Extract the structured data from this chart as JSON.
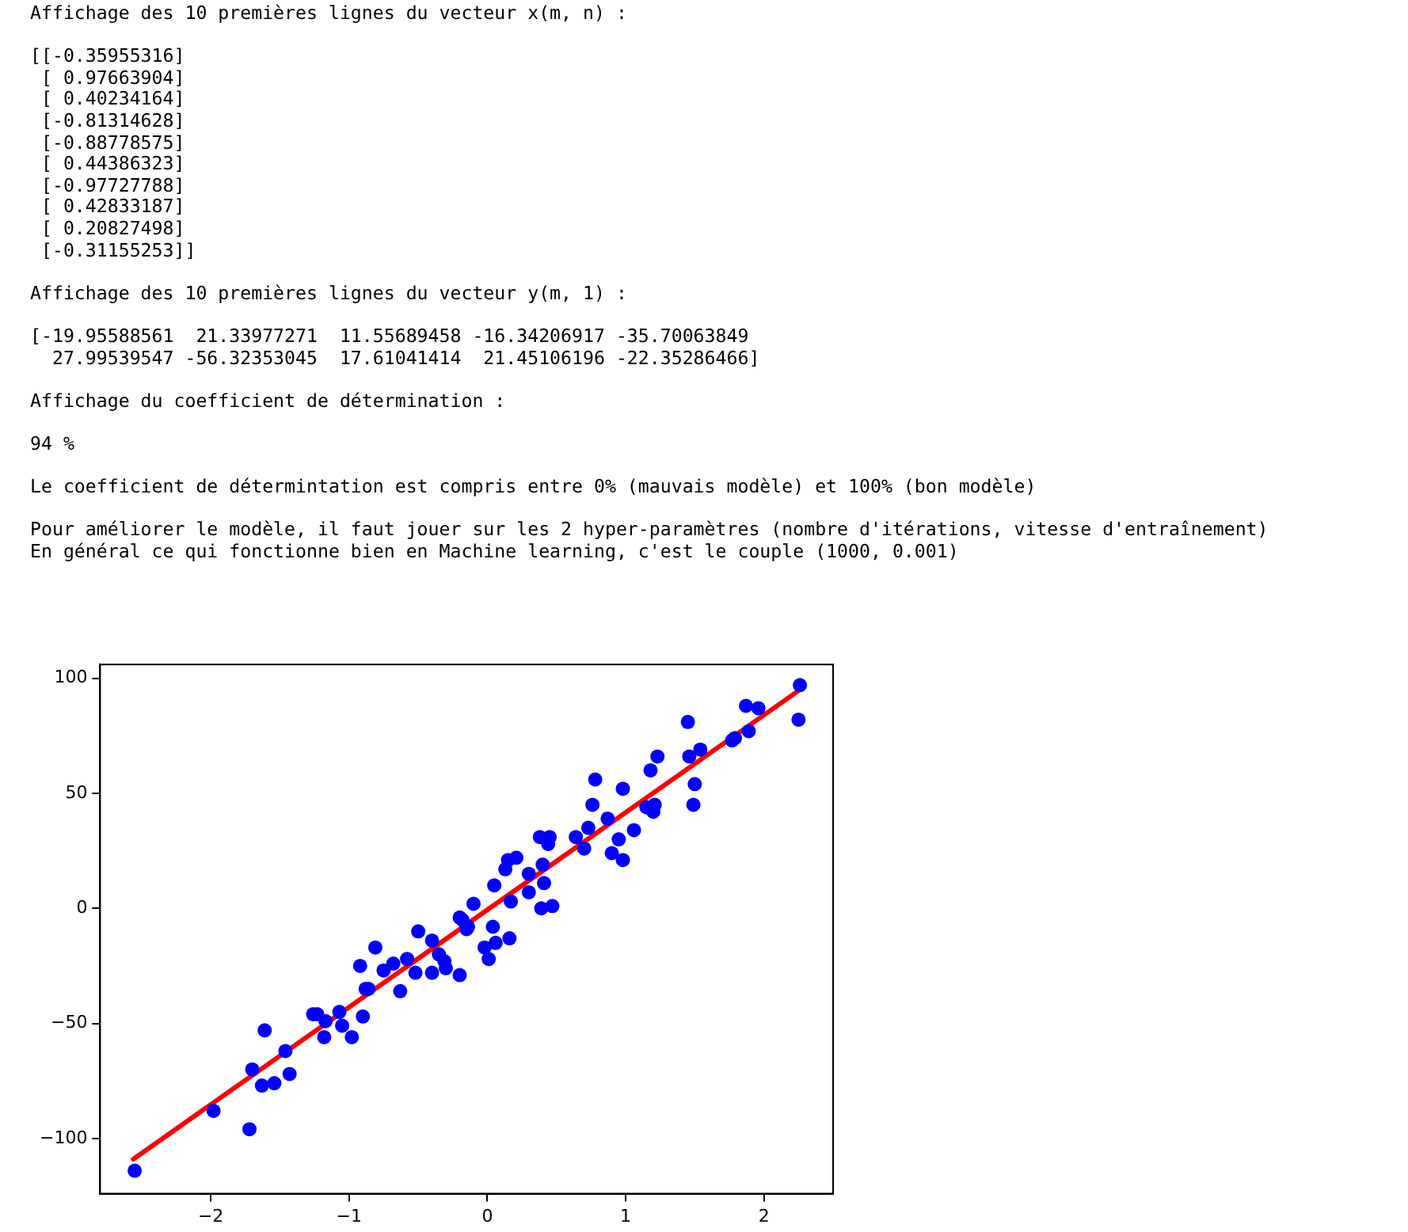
{
  "chart_data": {
    "type": "scatter",
    "annotations": [
      "Affichage des 10 premières lignes du vecteur x(m, n) :",
      "[[-0.35955316]\n [ 0.97663904]\n [ 0.40234164]\n [-0.81314628]\n [-0.88778575]\n [ 0.44386323]\n [-0.97727788]\n [ 0.42833187]\n [ 0.20827498]\n [-0.31155253]]",
      "Affichage des 10 premières lignes du vecteur y(m, 1) :",
      "[-19.95588561  21.33977271  11.55689458 -16.34206917 -35.70063849\n  27.99539547 -56.32353045  17.61041414  21.45106196 -22.35286466]",
      "Affichage du coefficient de détermination :",
      "94 %",
      "Le coefficient de détermintation est compris entre 0% (mauvais modèle) et 100% (bon modèle)",
      "Pour améliorer le modèle, il faut jouer sur les 2 hyper-paramètres (nombre d'itérations, vitesse d'entraînement)\nEn général ce qui fonctionne bien en Machine learning, c'est le couple (1000, 0.001)"
    ],
    "xlim": [
      -2.8,
      2.5
    ],
    "xticks": [
      -2,
      -1,
      0,
      1,
      2
    ],
    "ylim": [
      -124,
      106
    ],
    "yticks": [
      -100,
      -50,
      0,
      50,
      100
    ],
    "grid": false,
    "legend": false,
    "marker": "circle",
    "series": [
      {
        "color": "#0000ff",
        "x": [
          -2.55,
          -1.98,
          -1.72,
          -1.7,
          -1.61,
          -1.63,
          -1.54,
          -1.46,
          -1.43,
          -1.26,
          -1.23,
          -1.18,
          -1.17,
          -1.07,
          -1.05,
          -0.98,
          -0.9,
          -0.92,
          -0.88,
          -0.86,
          -0.81,
          -0.75,
          -0.68,
          -0.63,
          -0.58,
          -0.5,
          -0.52,
          -0.4,
          -0.4,
          -0.35,
          -0.31,
          -0.3,
          -0.2,
          -0.18,
          -0.15,
          -0.14,
          0.04,
          -0.02,
          0.06,
          0.16,
          0.01,
          -0.2,
          -0.1,
          0.05,
          0.15,
          0.21,
          0.13,
          0.17,
          0.3,
          0.3,
          0.4,
          0.41,
          0.38,
          0.45,
          0.44,
          0.39,
          0.47,
          0.64,
          0.7,
          0.73,
          0.76,
          0.78,
          0.87,
          0.9,
          0.98,
          0.95,
          0.98,
          1.06,
          1.15,
          1.21,
          1.2,
          1.18,
          1.23,
          1.45,
          1.46,
          1.5,
          1.49,
          1.54,
          1.77,
          1.79,
          1.87,
          1.96,
          1.89,
          2.26,
          2.25
        ],
        "values": [
          -114,
          -88,
          -96,
          -70,
          -53,
          -77,
          -76,
          -62,
          -72,
          -46,
          -46,
          -56,
          -49,
          -45,
          -51,
          -56,
          -47,
          -25,
          -35,
          -35,
          -17,
          -27,
          -24,
          -36,
          -22,
          -10,
          -28,
          -14,
          -28,
          -20,
          -23,
          -26,
          -29,
          -5,
          -9,
          -8,
          -8,
          -17,
          -15,
          -13,
          -22,
          -4,
          2,
          10,
          21,
          22,
          17,
          3,
          15,
          7,
          19,
          11,
          31,
          31,
          28,
          0,
          1,
          31,
          26,
          35,
          45,
          56,
          39,
          24,
          21,
          30,
          52,
          34,
          44,
          45,
          42,
          60,
          66,
          81,
          66,
          54,
          45,
          69,
          73,
          74,
          88,
          87,
          77,
          97,
          82
        ]
      },
      {
        "type": "line",
        "color": "#ff0000",
        "marker": "none",
        "x": [
          -2.56,
          2.26
        ],
        "values": [
          -109,
          95
        ]
      }
    ]
  }
}
